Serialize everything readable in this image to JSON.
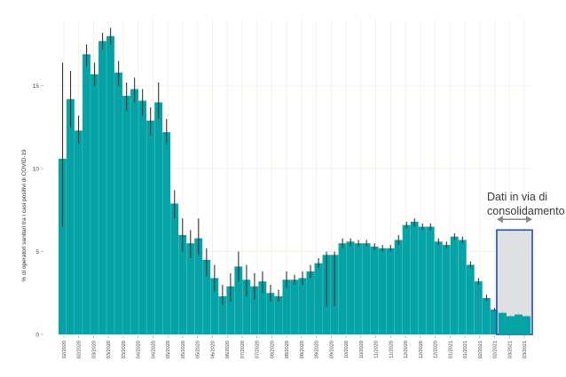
{
  "chart_data": {
    "type": "bar",
    "ylabel": "% di operatori sanitari tra i casi positivi di COVID-19",
    "ylim": [
      0,
      19
    ],
    "yticks": [
      0,
      5,
      10,
      15
    ],
    "ytick_labels": [
      "0",
      "5",
      "10",
      "15"
    ],
    "grid": true,
    "xtick_labels": [
      "02/2020",
      "02/2020",
      "03/2020",
      "03/2020",
      "03/2020",
      "04/2020",
      "04/2020",
      "05/2020",
      "05/2020",
      "05/2020",
      "06/2020",
      "06/2020",
      "07/2020",
      "07/2020",
      "08/2020",
      "08/2020",
      "08/2020",
      "09/2020",
      "09/2020",
      "10/2020",
      "10/2020",
      "11/2020",
      "11/2020",
      "12/2020",
      "12/2020",
      "12/2020",
      "01/2021",
      "01/2021",
      "02/2021",
      "02/2021",
      "03/2021",
      "03/2021"
    ],
    "values": [
      10.6,
      14.2,
      12.3,
      16.9,
      15.7,
      17.7,
      18.0,
      15.8,
      14.4,
      14.8,
      14.1,
      12.9,
      14.0,
      12.2,
      7.9,
      6.0,
      5.5,
      5.8,
      4.5,
      3.4,
      2.3,
      2.9,
      4.1,
      3.3,
      2.9,
      3.2,
      2.5,
      2.3,
      3.3,
      3.3,
      3.4,
      3.8,
      4.3,
      4.8,
      4.8,
      5.5,
      5.6,
      5.5,
      5.5,
      5.3,
      5.2,
      5.2,
      5.7,
      6.6,
      6.8,
      6.5,
      6.5,
      5.6,
      5.4,
      5.9,
      5.7,
      4.2,
      3.2,
      2.2,
      1.5,
      1.3,
      1.1,
      1.2,
      1.1
    ],
    "error_low": [
      6.5,
      12.5,
      11.5,
      16.2,
      15.0,
      17.2,
      17.5,
      15.0,
      13.5,
      14.0,
      13.2,
      12.0,
      13.0,
      11.5,
      7.0,
      5.0,
      4.6,
      4.8,
      3.5,
      2.6,
      1.8,
      2.0,
      3.2,
      2.3,
      2.1,
      2.5,
      2.0,
      2.0,
      2.8,
      3.0,
      3.0,
      3.4,
      4.0,
      1.7,
      1.7,
      5.2,
      5.3,
      5.3,
      5.3,
      5.1,
      5.0,
      5.0,
      5.4,
      6.4,
      6.5,
      6.3,
      6.3,
      5.4,
      5.2,
      5.7,
      5.5,
      4.0,
      3.0,
      2.0,
      1.4,
      1.2,
      1.0,
      1.1,
      1.0
    ],
    "error_high": [
      16.4,
      15.9,
      13.2,
      17.5,
      16.4,
      18.2,
      18.5,
      16.5,
      15.2,
      15.5,
      14.8,
      13.7,
      15.2,
      13.0,
      8.7,
      7.0,
      6.3,
      7.0,
      5.2,
      4.2,
      3.0,
      3.7,
      5.0,
      4.2,
      3.7,
      3.8,
      3.0,
      2.7,
      3.8,
      3.6,
      3.8,
      4.2,
      4.6,
      5.0,
      5.0,
      5.8,
      5.8,
      5.7,
      5.7,
      5.5,
      5.4,
      5.4,
      6.0,
      6.8,
      7.0,
      6.7,
      6.7,
      5.8,
      5.6,
      6.1,
      5.9,
      4.4,
      3.4,
      2.4,
      1.6,
      1.4,
      1.2,
      1.3,
      1.2
    ],
    "bar_color": "#05a3a6",
    "error_color": "#333333",
    "grid_color": "#f3efdc",
    "highlight": {
      "start_index": 55,
      "end_index": 58,
      "fill": "#d8dadf",
      "stroke": "#1f4fb0",
      "annotation": [
        "Dati in via di",
        "consolidamento"
      ],
      "arrow_color": "#888888"
    }
  }
}
